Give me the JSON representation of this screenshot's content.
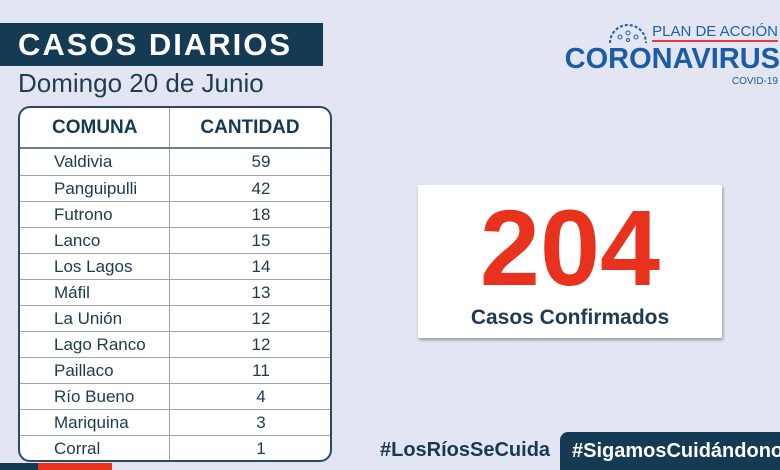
{
  "title": "CASOS DIARIOS",
  "subtitle": "Domingo 20 de Junio",
  "table": {
    "headers": [
      "COMUNA",
      "CANTIDAD"
    ],
    "rows": [
      [
        "Valdivia",
        "59"
      ],
      [
        "Panguipulli",
        "42"
      ],
      [
        "Futrono",
        "18"
      ],
      [
        "Lanco",
        "15"
      ],
      [
        "Los Lagos",
        "14"
      ],
      [
        "Máfil",
        "13"
      ],
      [
        "La Unión",
        "12"
      ],
      [
        "Lago Ranco",
        "12"
      ],
      [
        "Paillaco",
        "11"
      ],
      [
        "Río Bueno",
        "4"
      ],
      [
        "Mariquina",
        "3"
      ],
      [
        "Corral",
        "1"
      ]
    ]
  },
  "total": {
    "value": "204",
    "label": "Casos Confirmados"
  },
  "logo": {
    "top": "PLAN DE ACCIÓN",
    "main": "CORONAVIRUS",
    "sub": "COVID-19"
  },
  "hashtags": [
    "#LosRíosSeCuida",
    "#SigamosCuidándonos"
  ],
  "colors": {
    "navy": "#153b54",
    "red": "#e8321e",
    "blue": "#1b5ca6",
    "background": "#e3e6f2"
  }
}
